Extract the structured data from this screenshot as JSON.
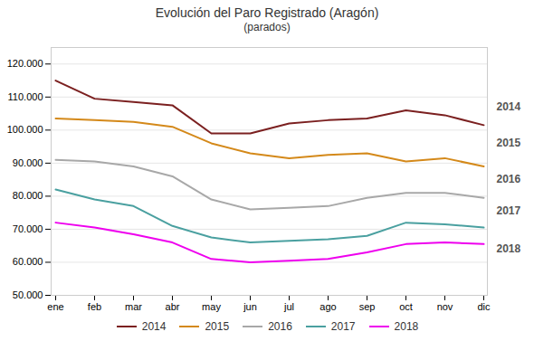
{
  "chart_data": {
    "type": "line",
    "title": "Evolución del Paro Registrado (Aragón)",
    "subtitle": "(parados)",
    "categories": [
      "ene",
      "feb",
      "mar",
      "abr",
      "may",
      "jun",
      "jul",
      "ago",
      "sep",
      "oct",
      "nov",
      "dic"
    ],
    "series": [
      {
        "name": "2014",
        "color": "#7B2020",
        "values": [
          115000,
          109500,
          108500,
          107500,
          99000,
          99000,
          102000,
          103000,
          103500,
          106000,
          104500,
          101500
        ]
      },
      {
        "name": "2015",
        "color": "#D4891A",
        "values": [
          103500,
          103000,
          102500,
          101000,
          96000,
          93000,
          91500,
          92500,
          93000,
          90500,
          91500,
          89000
        ]
      },
      {
        "name": "2016",
        "color": "#A8A8A8",
        "values": [
          91000,
          90500,
          89000,
          86000,
          79000,
          76000,
          76500,
          77000,
          79500,
          81000,
          81000,
          79500
        ]
      },
      {
        "name": "2017",
        "color": "#4AA0A0",
        "values": [
          82000,
          79000,
          77000,
          71000,
          67500,
          66000,
          66500,
          67000,
          68000,
          72000,
          71500,
          70500
        ]
      },
      {
        "name": "2018",
        "color": "#EE00EE",
        "values": [
          72000,
          70500,
          68500,
          66000,
          61000,
          60000,
          60500,
          61000,
          63000,
          65500,
          66000,
          65500
        ]
      }
    ],
    "ylim": [
      50000,
      125000
    ],
    "yticks": [
      {
        "value": 50000,
        "label": "50.000"
      },
      {
        "value": 60000,
        "label": "60.000"
      },
      {
        "value": 70000,
        "label": "70.000"
      },
      {
        "value": 80000,
        "label": "80.000"
      },
      {
        "value": 90000,
        "label": "90.000"
      },
      {
        "value": 100000,
        "label": "100.000"
      },
      {
        "value": 110000,
        "label": "110.000"
      },
      {
        "value": 120000,
        "label": "120.000"
      }
    ],
    "grid": true,
    "legend": "bottom",
    "annotations": [
      {
        "text": "2014",
        "y": 107000
      },
      {
        "text": "2015",
        "y": 96000
      },
      {
        "text": "2016",
        "y": 85000
      },
      {
        "text": "2017",
        "y": 75500
      },
      {
        "text": "2018",
        "y": 64000
      }
    ]
  }
}
